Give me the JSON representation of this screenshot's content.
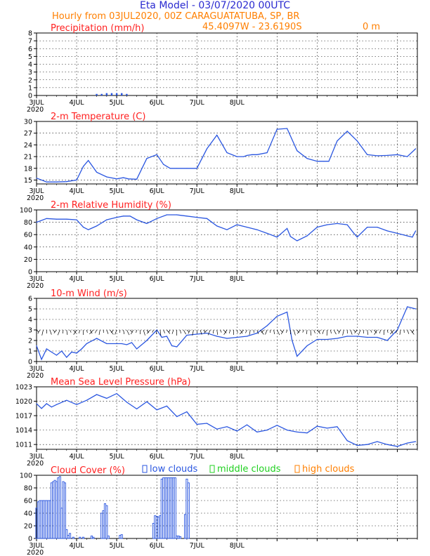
{
  "header": {
    "title": "Eta Model - 03/07/2020 00UTC",
    "subtitle": "Hourly from 03JUL2020, 00Z  CARAGUATATUBA, SP, BR",
    "coords": "45.4097W - 23.6190S",
    "elevation": "0 m"
  },
  "colors": {
    "title": "#2a2ad0",
    "orange": "#ff7f00",
    "red": "#ff2020",
    "line": "#2a56e0",
    "green": "#20d020"
  },
  "legend": {
    "low": "low clouds",
    "middle": "middle clouds",
    "high": "high clouds"
  },
  "x_ticks": [
    "3JUL",
    "4JUL",
    "5JUL",
    "6JUL",
    "7JUL",
    "8JUL"
  ],
  "year_label": "2020",
  "chart_data": [
    {
      "type": "bar",
      "title": "Precipitation (mm/h)",
      "ylim": [
        0,
        8
      ],
      "yticks": [
        0,
        1,
        2,
        3,
        4,
        5,
        6,
        7,
        8
      ],
      "x_hours": [
        36,
        39,
        42,
        45,
        48,
        51,
        54
      ],
      "values": [
        0.2,
        0.2,
        0.3,
        0.3,
        0.3,
        0.3,
        0.2
      ]
    },
    {
      "type": "line",
      "title": "2-m Temperature (C)",
      "ylim": [
        14,
        30
      ],
      "yticks": [
        15,
        18,
        21,
        24,
        27,
        30
      ],
      "x": [
        0,
        6,
        12,
        18,
        24,
        28,
        31,
        36,
        42,
        48,
        52,
        55,
        60,
        66,
        72,
        76,
        80,
        84,
        90,
        96,
        102,
        108,
        114,
        120,
        124,
        126,
        129,
        132,
        138,
        144,
        150,
        156,
        162,
        168,
        172,
        175,
        180,
        186,
        192,
        198,
        204,
        210,
        216,
        222,
        227
      ],
      "y": [
        15.5,
        14.5,
        14.5,
        14.6,
        15.0,
        18.5,
        20.0,
        17.0,
        15.8,
        15.3,
        15.6,
        15.3,
        15.2,
        20.5,
        21.5,
        19.0,
        18.0,
        18.0,
        18.0,
        18.0,
        23.0,
        26.5,
        22.0,
        21.0,
        21.0,
        21.3,
        21.5,
        21.5,
        22.0,
        28.0,
        28.2,
        22.5,
        20.5,
        19.8,
        19.8,
        19.8,
        25.0,
        27.5,
        25.0,
        21.5,
        21.2,
        21.3,
        21.5,
        21.0,
        23.0
      ]
    },
    {
      "type": "line",
      "title": "2-m Relative Humidity (%)",
      "ylim": [
        0,
        100
      ],
      "yticks": [
        0,
        20,
        40,
        60,
        80,
        100
      ],
      "x": [
        0,
        6,
        12,
        18,
        24,
        28,
        31,
        36,
        42,
        48,
        52,
        56,
        60,
        66,
        72,
        78,
        84,
        90,
        96,
        102,
        108,
        114,
        120,
        126,
        132,
        138,
        144,
        150,
        152,
        156,
        162,
        168,
        174,
        180,
        186,
        190,
        192,
        198,
        204,
        210,
        216,
        222,
        225,
        227
      ],
      "y": [
        80,
        86,
        85,
        85,
        84,
        72,
        68,
        74,
        84,
        88,
        90,
        90,
        84,
        78,
        86,
        92,
        92,
        90,
        88,
        86,
        74,
        68,
        76,
        72,
        68,
        62,
        56,
        70,
        57,
        50,
        58,
        72,
        76,
        78,
        76,
        62,
        56,
        72,
        72,
        66,
        62,
        58,
        56,
        66
      ]
    },
    {
      "type": "line",
      "title": "10-m Wind (m/s)",
      "ylim": [
        0,
        6
      ],
      "yticks": [
        0,
        1,
        2,
        3,
        4,
        5,
        6
      ],
      "x": [
        0,
        3,
        6,
        9,
        12,
        15,
        18,
        21,
        24,
        27,
        30,
        36,
        42,
        48,
        51,
        54,
        57,
        60,
        66,
        72,
        75,
        78,
        81,
        84,
        90,
        96,
        102,
        108,
        114,
        120,
        126,
        132,
        138,
        144,
        150,
        153,
        156,
        162,
        168,
        174,
        180,
        186,
        192,
        198,
        204,
        210,
        216,
        222,
        227
      ],
      "y": [
        1.5,
        0.2,
        1.2,
        0.9,
        0.6,
        1.0,
        0.4,
        0.9,
        0.8,
        1.2,
        1.7,
        2.2,
        1.7,
        1.7,
        1.7,
        1.6,
        1.8,
        1.2,
        2.0,
        3.0,
        2.3,
        2.4,
        1.5,
        1.4,
        2.5,
        2.6,
        2.7,
        2.4,
        2.2,
        2.3,
        2.4,
        2.7,
        3.4,
        4.3,
        4.7,
        2.0,
        0.5,
        1.5,
        2.1,
        2.1,
        2.2,
        2.4,
        2.4,
        2.3,
        2.3,
        2.0,
        3.0,
        5.2,
        5.0
      ],
      "barb_row_value": 3
    },
    {
      "type": "line",
      "title": "Mean Sea Level Pressure (hPa)",
      "ylim": [
        1010,
        1023
      ],
      "yticks": [
        1011,
        1014,
        1017,
        1020,
        1023
      ],
      "x": [
        0,
        3,
        6,
        9,
        12,
        18,
        24,
        30,
        36,
        42,
        48,
        54,
        60,
        66,
        72,
        78,
        84,
        90,
        96,
        102,
        108,
        114,
        120,
        126,
        132,
        138,
        144,
        150,
        156,
        162,
        168,
        174,
        180,
        186,
        192,
        198,
        204,
        210,
        216,
        222,
        227
      ],
      "y": [
        1019.5,
        1018.5,
        1019.5,
        1018.8,
        1019.3,
        1020.2,
        1019.3,
        1020.2,
        1021.4,
        1020.6,
        1021.6,
        1019.8,
        1018.4,
        1019.9,
        1018.2,
        1019.0,
        1016.8,
        1017.8,
        1015.2,
        1015.4,
        1014.2,
        1014.7,
        1013.8,
        1015.1,
        1013.6,
        1014.0,
        1015.0,
        1014.0,
        1013.6,
        1013.4,
        1014.8,
        1014.4,
        1014.7,
        1011.8,
        1010.8,
        1011.0,
        1011.6,
        1011.0,
        1010.6,
        1011.3,
        1011.6
      ]
    },
    {
      "type": "bar",
      "title": "Cloud Cover (%)",
      "ylim": [
        0,
        100
      ],
      "yticks": [
        0,
        20,
        40,
        60,
        80,
        100
      ],
      "series": [
        {
          "name": "low clouds",
          "x_hours": [
            0,
            1,
            2,
            3,
            4,
            5,
            6,
            7,
            8,
            9,
            10,
            11,
            12,
            13,
            14,
            15,
            16,
            17,
            18,
            19,
            20,
            22,
            26,
            28,
            33,
            34,
            39,
            40,
            41,
            42,
            43,
            50,
            51,
            70,
            71,
            72,
            73,
            74,
            75,
            76,
            77,
            78,
            79,
            80,
            81,
            82,
            83,
            84,
            85,
            86,
            89,
            90,
            91
          ],
          "values": [
            48,
            58,
            60,
            60,
            60,
            60,
            60,
            60,
            60,
            88,
            90,
            92,
            90,
            96,
            98,
            48,
            90,
            88,
            14,
            5,
            8,
            2,
            2,
            2,
            4,
            2,
            40,
            44,
            55,
            52,
            4,
            5,
            6,
            24,
            36,
            35,
            34,
            36,
            94,
            96,
            96,
            96,
            96,
            96,
            96,
            96,
            96,
            4,
            4,
            3,
            38,
            94,
            88
          ]
        }
      ]
    }
  ]
}
